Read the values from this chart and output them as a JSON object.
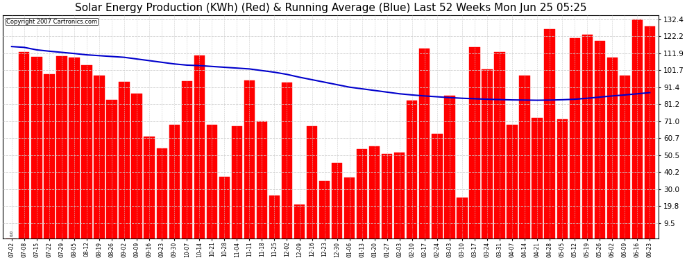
{
  "title": "Solar Energy Production (KWh) (Red) & Running Average (Blue) Last 52 Weeks Mon Jun 25 05:25",
  "copyright": "Copyright 2007 Cartronics.com",
  "bar_color": "#ff0000",
  "line_color": "#0000cc",
  "bg_color": "#ffffff",
  "grid_color": "#cccccc",
  "title_fontsize": 11,
  "categories": [
    "07-02",
    "07-08",
    "07-15",
    "07-22",
    "07-29",
    "08-05",
    "08-12",
    "08-19",
    "08-26",
    "09-02",
    "09-09",
    "09-16",
    "09-23",
    "09-30",
    "10-07",
    "10-14",
    "10-21",
    "10-28",
    "11-04",
    "11-11",
    "11-18",
    "11-25",
    "12-02",
    "12-09",
    "12-16",
    "12-23",
    "12-30",
    "01-06",
    "01-13",
    "01-20",
    "01-27",
    "02-03",
    "02-10",
    "02-17",
    "02-24",
    "03-03",
    "03-10",
    "03-17",
    "03-24",
    "03-31",
    "04-07",
    "04-14",
    "04-21",
    "04-28",
    "05-05",
    "05-12",
    "05-19",
    "05-26",
    "06-02",
    "06-09",
    "06-16",
    "06-23"
  ],
  "values": [
    0.0,
    112.713,
    109.627,
    99.52,
    110.269,
    109.371,
    104.664,
    98.383,
    84.049,
    94.682,
    87.507,
    61.533,
    54.533,
    68.856,
    95.135,
    110.606,
    68.781,
    37.591,
    68.099,
    95.752,
    70.705,
    26.086,
    94.213,
    20.698,
    67.916,
    34.748,
    45.816,
    37.093,
    54.113,
    55.613,
    51.254,
    51.892,
    83.486,
    114.799,
    63.404,
    86.245,
    24.863,
    115.709,
    102.193,
    112.825,
    68.825,
    98.486,
    72.999,
    126.592,
    72.325,
    121.168,
    123.148,
    119.389,
    109.258,
    98.401,
    132.399,
    128.151
  ],
  "running_avg": [
    116.0,
    115.5,
    114.0,
    113.2,
    112.5,
    111.8,
    111.0,
    110.5,
    110.0,
    109.5,
    108.5,
    107.5,
    106.5,
    105.5,
    104.8,
    104.5,
    104.0,
    103.5,
    103.0,
    102.5,
    101.5,
    100.5,
    99.2,
    97.5,
    96.0,
    94.5,
    93.0,
    91.5,
    90.5,
    89.5,
    88.5,
    87.5,
    86.8,
    86.2,
    85.7,
    85.2,
    84.8,
    84.5,
    84.2,
    84.0,
    83.8,
    83.7,
    83.6,
    83.7,
    83.9,
    84.2,
    84.8,
    85.5,
    86.2,
    86.8,
    87.5,
    88.2
  ],
  "yticks": [
    9.5,
    19.8,
    30.0,
    40.2,
    50.5,
    60.7,
    71.0,
    81.2,
    91.4,
    101.7,
    111.9,
    122.2,
    132.4
  ],
  "ylim_display": [
    9.5,
    135.0
  ],
  "ylim_data": [
    0,
    135.0
  ],
  "bar_width": 0.85
}
